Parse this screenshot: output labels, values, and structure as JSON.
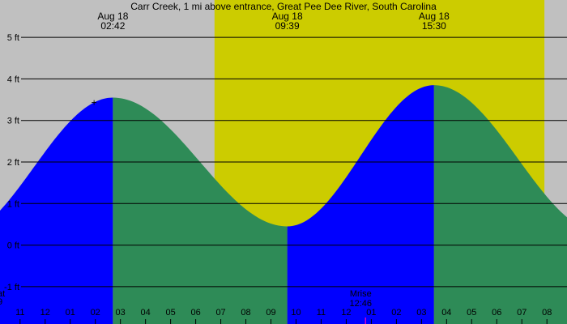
{
  "chart_data": {
    "type": "area",
    "title": "Carr Creek, 1 mi above entrance, Great Pee Dee River, South Carolina",
    "y_unit": "ft",
    "ylim": [
      -1.9,
      5.9
    ],
    "y_ticks": [
      {
        "value": 5,
        "label": "5 ft"
      },
      {
        "value": 4,
        "label": "4 ft"
      },
      {
        "value": 3,
        "label": "3 ft"
      },
      {
        "value": 2,
        "label": "2 ft"
      },
      {
        "value": 1,
        "label": "1 ft"
      },
      {
        "value": 0,
        "label": "0 ft"
      },
      {
        "value": -1,
        "label": "-1 ft"
      }
    ],
    "x_unit": "hours since 00:00 Aug 18",
    "xlim": [
      -1.8,
      20.8
    ],
    "x_ticks": [
      {
        "hour": -1,
        "label": "11"
      },
      {
        "hour": 0,
        "label": "12"
      },
      {
        "hour": 1,
        "label": "01"
      },
      {
        "hour": 2,
        "label": "02"
      },
      {
        "hour": 3,
        "label": "03"
      },
      {
        "hour": 4,
        "label": "04"
      },
      {
        "hour": 5,
        "label": "05"
      },
      {
        "hour": 6,
        "label": "06"
      },
      {
        "hour": 7,
        "label": "07"
      },
      {
        "hour": 8,
        "label": "08"
      },
      {
        "hour": 9,
        "label": "09"
      },
      {
        "hour": 10,
        "label": "10"
      },
      {
        "hour": 11,
        "label": "11"
      },
      {
        "hour": 12,
        "label": "12"
      },
      {
        "hour": 13,
        "label": "01"
      },
      {
        "hour": 14,
        "label": "02"
      },
      {
        "hour": 15,
        "label": "03"
      },
      {
        "hour": 16,
        "label": "04"
      },
      {
        "hour": 17,
        "label": "05"
      },
      {
        "hour": 18,
        "label": "06"
      },
      {
        "hour": 19,
        "label": "07"
      },
      {
        "hour": 20,
        "label": "08"
      },
      {
        "hour": 21,
        "label": "09"
      }
    ],
    "daylight": {
      "start_hour": 6.75,
      "end_hour": 19.9
    },
    "extrema": [
      {
        "hour": -3.6,
        "height": 0.2,
        "type": "low"
      },
      {
        "hour": 2.7,
        "height": 3.55,
        "type": "high"
      },
      {
        "hour": 9.65,
        "height": 0.45,
        "type": "low"
      },
      {
        "hour": 15.5,
        "height": 3.85,
        "type": "high"
      },
      {
        "hour": 22.2,
        "height": 0.3,
        "type": "low"
      }
    ],
    "event_labels": [
      {
        "hour": 2.7,
        "date": "Aug 18",
        "time": "02:42"
      },
      {
        "hour": 9.65,
        "date": "Aug 18",
        "time": "09:39"
      },
      {
        "hour": 15.5,
        "date": "Aug 18",
        "time": "15:30"
      }
    ],
    "moonrise": {
      "hour": 12.77,
      "label": "Mrise",
      "time": "12:46"
    },
    "left_edge_labels": [
      "at",
      "9"
    ],
    "colors": {
      "background": "#c0c0c0",
      "daylight": "#cccc00",
      "rising": "#0000ff",
      "falling": "#2e8b57",
      "gridline": "#000000",
      "moon_marker": "#cc00cc",
      "text": "#000000"
    }
  }
}
